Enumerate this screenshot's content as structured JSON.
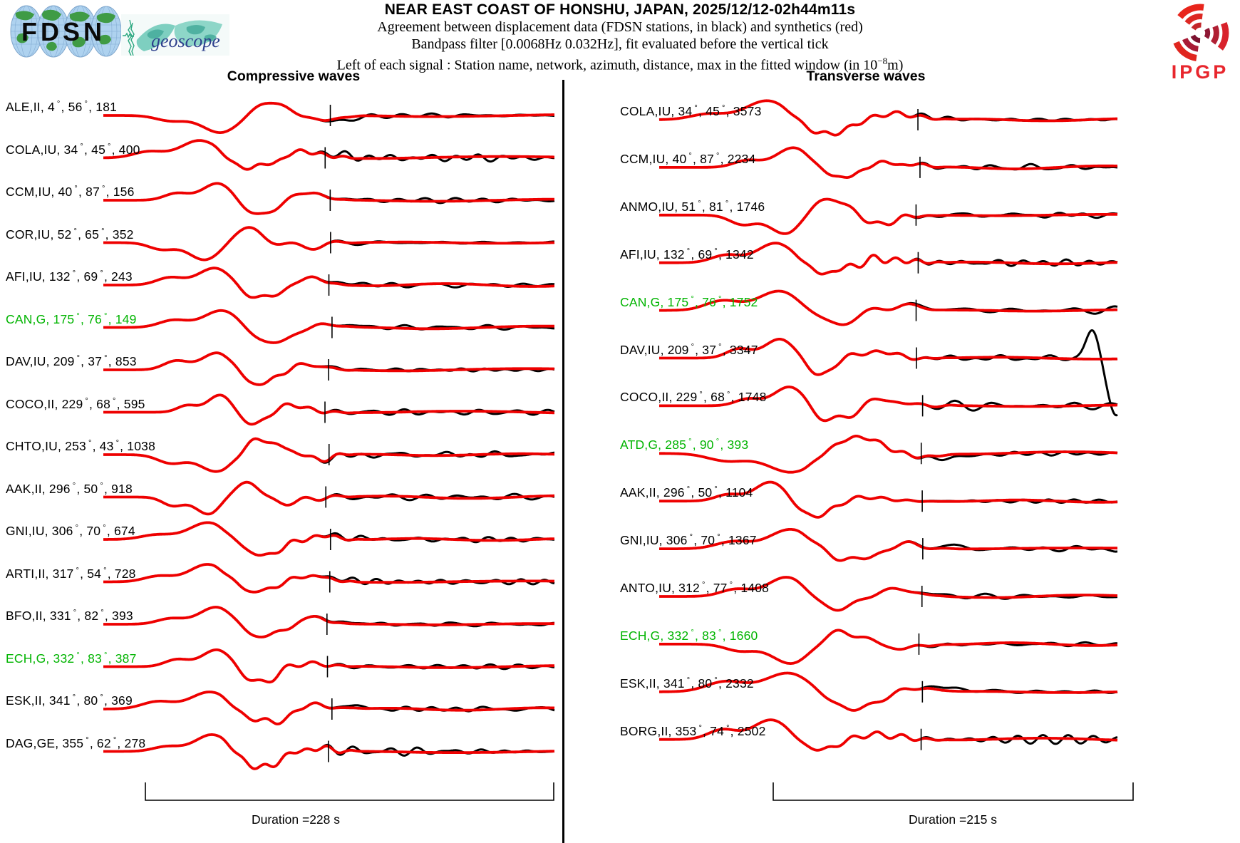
{
  "header": {
    "title": "NEAR EAST COAST OF HONSHU, JAPAN, 2025/12/12-02h44m11s",
    "line2": "Agreement between displacement data (FDSN stations, in black) and synthetics (red)",
    "line3": "Bandpass filter [0.0068Hz 0.032Hz], fit evaluated before the vertical tick",
    "line4_pre": "Left of each signal : Station name, network, azimuth, distance, max in the fitted window (in 10",
    "line4_sup": "−8",
    "line4_post": "m)"
  },
  "logos": {
    "fdsn": "FDSN",
    "geoscope": "geoscope",
    "ipgp": "IPGP"
  },
  "colors": {
    "data_black": "#000000",
    "synthetic_red": "#ee0000",
    "highlight_green": "#00b400"
  },
  "chart_data": {
    "type": "line",
    "description": "Seismogram comparison: observed displacement (black) vs synthetics (red); vertical tick marks end of fitted window",
    "amplitude_unit": "1e-8 m",
    "bandpass_hz": [
      0.0068,
      0.032
    ],
    "panels": [
      {
        "title": "Compressive waves",
        "duration_label": "Duration =228 s",
        "duration_s": 228,
        "stations": [
          {
            "station": "ALE",
            "network": "II",
            "azimuth_deg": 4,
            "distance_deg": 56,
            "max_fitted": 181,
            "highlight": false
          },
          {
            "station": "COLA",
            "network": "IU",
            "azimuth_deg": 34,
            "distance_deg": 45,
            "max_fitted": 400,
            "highlight": false
          },
          {
            "station": "CCM",
            "network": "IU",
            "azimuth_deg": 40,
            "distance_deg": 87,
            "max_fitted": 156,
            "highlight": false
          },
          {
            "station": "COR",
            "network": "IU",
            "azimuth_deg": 52,
            "distance_deg": 65,
            "max_fitted": 352,
            "highlight": false
          },
          {
            "station": "AFI",
            "network": "IU",
            "azimuth_deg": 132,
            "distance_deg": 69,
            "max_fitted": 243,
            "highlight": false
          },
          {
            "station": "CAN",
            "network": "G",
            "azimuth_deg": 175,
            "distance_deg": 76,
            "max_fitted": 149,
            "highlight": true
          },
          {
            "station": "DAV",
            "network": "IU",
            "azimuth_deg": 209,
            "distance_deg": 37,
            "max_fitted": 853,
            "highlight": false
          },
          {
            "station": "COCO",
            "network": "II",
            "azimuth_deg": 229,
            "distance_deg": 68,
            "max_fitted": 595,
            "highlight": false
          },
          {
            "station": "CHTO",
            "network": "IU",
            "azimuth_deg": 253,
            "distance_deg": 43,
            "max_fitted": 1038,
            "highlight": false
          },
          {
            "station": "AAK",
            "network": "II",
            "azimuth_deg": 296,
            "distance_deg": 50,
            "max_fitted": 918,
            "highlight": false
          },
          {
            "station": "GNI",
            "network": "IU",
            "azimuth_deg": 306,
            "distance_deg": 70,
            "max_fitted": 674,
            "highlight": false
          },
          {
            "station": "ARTI",
            "network": "II",
            "azimuth_deg": 317,
            "distance_deg": 54,
            "max_fitted": 728,
            "highlight": false
          },
          {
            "station": "BFO",
            "network": "II",
            "azimuth_deg": 331,
            "distance_deg": 82,
            "max_fitted": 393,
            "highlight": false
          },
          {
            "station": "ECH",
            "network": "G",
            "azimuth_deg": 332,
            "distance_deg": 83,
            "max_fitted": 387,
            "highlight": true
          },
          {
            "station": "ESK",
            "network": "II",
            "azimuth_deg": 341,
            "distance_deg": 80,
            "max_fitted": 369,
            "highlight": false
          },
          {
            "station": "DAG",
            "network": "GE",
            "azimuth_deg": 355,
            "distance_deg": 62,
            "max_fitted": 278,
            "highlight": false
          }
        ]
      },
      {
        "title": "Transverse waves",
        "duration_label": "Duration =215 s",
        "duration_s": 215,
        "stations": [
          {
            "station": "COLA",
            "network": "IU",
            "azimuth_deg": 34,
            "distance_deg": 45,
            "max_fitted": 3573,
            "highlight": false
          },
          {
            "station": "CCM",
            "network": "IU",
            "azimuth_deg": 40,
            "distance_deg": 87,
            "max_fitted": 2234,
            "highlight": false
          },
          {
            "station": "ANMO",
            "network": "IU",
            "azimuth_deg": 51,
            "distance_deg": 81,
            "max_fitted": 1746,
            "highlight": false
          },
          {
            "station": "AFI",
            "network": "IU",
            "azimuth_deg": 132,
            "distance_deg": 69,
            "max_fitted": 1342,
            "highlight": false
          },
          {
            "station": "CAN",
            "network": "G",
            "azimuth_deg": 175,
            "distance_deg": 76,
            "max_fitted": 1752,
            "highlight": true
          },
          {
            "station": "DAV",
            "network": "IU",
            "azimuth_deg": 209,
            "distance_deg": 37,
            "max_fitted": 3347,
            "highlight": false,
            "end_anomaly": true
          },
          {
            "station": "COCO",
            "network": "II",
            "azimuth_deg": 229,
            "distance_deg": 68,
            "max_fitted": 1748,
            "highlight": false
          },
          {
            "station": "ATD",
            "network": "G",
            "azimuth_deg": 285,
            "distance_deg": 90,
            "max_fitted": 393,
            "highlight": true
          },
          {
            "station": "AAK",
            "network": "II",
            "azimuth_deg": 296,
            "distance_deg": 50,
            "max_fitted": 1104,
            "highlight": false
          },
          {
            "station": "GNI",
            "network": "IU",
            "azimuth_deg": 306,
            "distance_deg": 70,
            "max_fitted": 1367,
            "highlight": false
          },
          {
            "station": "ANTO",
            "network": "IU",
            "azimuth_deg": 312,
            "distance_deg": 77,
            "max_fitted": 1408,
            "highlight": false
          },
          {
            "station": "ECH",
            "network": "G",
            "azimuth_deg": 332,
            "distance_deg": 83,
            "max_fitted": 1660,
            "highlight": true
          },
          {
            "station": "ESK",
            "network": "II",
            "azimuth_deg": 341,
            "distance_deg": 80,
            "max_fitted": 2332,
            "highlight": false
          },
          {
            "station": "BORG",
            "network": "II",
            "azimuth_deg": 353,
            "distance_deg": 74,
            "max_fitted": 2502,
            "highlight": false
          }
        ]
      }
    ]
  }
}
